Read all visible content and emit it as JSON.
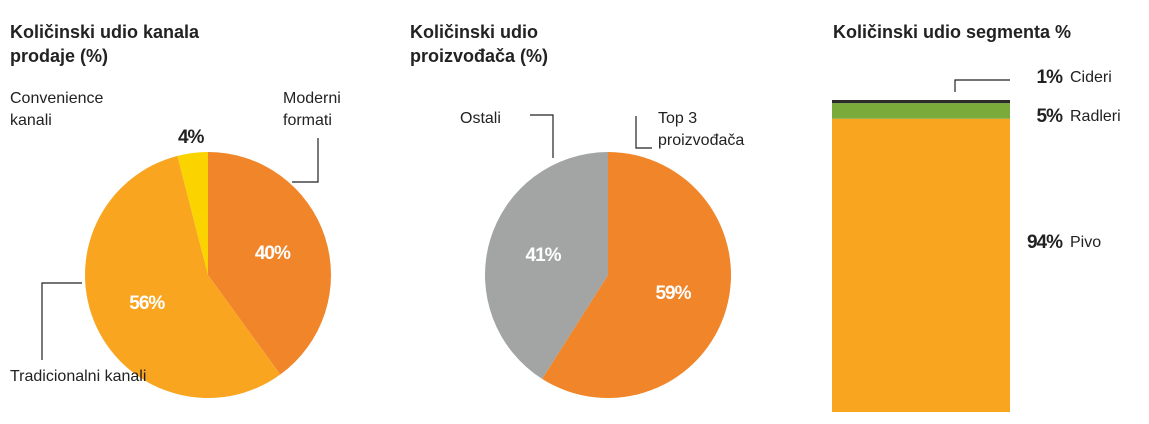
{
  "chart_data": [
    {
      "type": "pie",
      "title": "Količinski udio kanala prodaje (%)",
      "categories": [
        "Moderni formati",
        "Tradicionalni kanali",
        "Convenience kanali"
      ],
      "values": [
        40,
        56,
        4
      ],
      "value_labels": [
        "40%",
        "56%",
        "4%"
      ],
      "colors": [
        "#f0852a",
        "#f9a520",
        "#fbd400"
      ]
    },
    {
      "type": "pie",
      "title": "Količinski udio proizvođača (%)",
      "categories": [
        "Top 3 proizvođača",
        "Ostali"
      ],
      "values": [
        59,
        41
      ],
      "value_labels": [
        "59%",
        "41%"
      ],
      "colors": [
        "#f0852a",
        "#a3a5a4"
      ]
    },
    {
      "type": "bar",
      "title": "Količinski udio segmenta %",
      "stacked": true,
      "series": [
        {
          "name": "Pivo",
          "color": "#f9a520",
          "values": [
            94
          ],
          "value_labels": [
            "94%"
          ]
        },
        {
          "name": "Radleri",
          "color": "#7aab3a",
          "values": [
            5
          ],
          "value_labels": [
            "5%"
          ]
        },
        {
          "name": "Cideri",
          "color": "#2b2b2b",
          "values": [
            1
          ],
          "value_labels": [
            "1%"
          ]
        }
      ]
    }
  ]
}
